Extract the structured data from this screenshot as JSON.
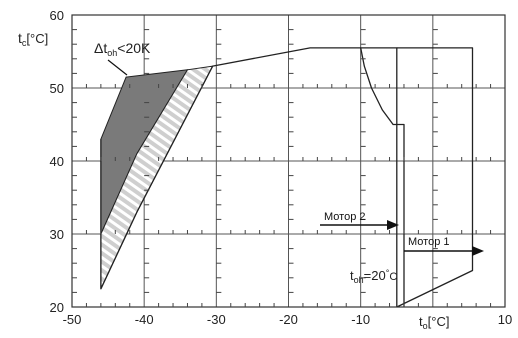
{
  "chart_data": {
    "type": "area",
    "xlim": [
      -50,
      10
    ],
    "ylim": [
      20,
      60
    ],
    "x_ticks": [
      "-50",
      "-40",
      "-30",
      "-20",
      "-10",
      "",
      "10"
    ],
    "y_ticks": [
      "20",
      "30",
      "40",
      "50",
      "60"
    ],
    "grid": true,
    "y_label": {
      "main": "t",
      "sub": "c",
      "unit": "[°C]"
    },
    "x_label": {
      "main": "t",
      "sub": "o",
      "unit": "[°C]"
    },
    "series": [
      {
        "fill": "#7a7a7a",
        "points": [
          [
            -46,
            43
          ],
          [
            -46,
            30
          ],
          [
            -41,
            41
          ],
          [
            -34,
            52.5
          ],
          [
            -42.5,
            51.5
          ]
        ]
      },
      {
        "fill": "hatched",
        "points": [
          [
            -46,
            30
          ],
          [
            -46,
            22.5
          ],
          [
            -41,
            33
          ],
          [
            -30.5,
            53
          ],
          [
            -34,
            52.5
          ],
          [
            -41,
            41
          ]
        ]
      },
      {
        "outline": true,
        "points": [
          [
            -46,
            43
          ],
          [
            -46,
            22.5
          ],
          [
            -41,
            33
          ],
          [
            -30.5,
            53
          ],
          [
            -17,
            55.5
          ],
          [
            -5,
            55.5
          ],
          [
            -5,
            20
          ]
        ]
      },
      {
        "outline": true,
        "points": [
          [
            -10,
            55.5
          ],
          [
            -9.5,
            53
          ],
          [
            -8.5,
            50
          ],
          [
            -7,
            47
          ],
          [
            -5.5,
            45
          ],
          [
            -4,
            45
          ],
          [
            -4,
            20
          ]
        ]
      },
      {
        "outline": true,
        "points": [
          [
            -5,
            55.5
          ],
          [
            5.5,
            55.5
          ],
          [
            5.5,
            25
          ],
          [
            -5,
            20
          ]
        ]
      }
    ],
    "annotations": {
      "delta": {
        "prefix": "Δt",
        "sub": "oh",
        "suffix": "<20K"
      },
      "motor2": "Мотор 2",
      "motor1": "Мотор 1",
      "toh": {
        "prefix": "t",
        "sub": "oh",
        "suffix": "=20",
        "deg": "°",
        "unit": "C"
      }
    }
  }
}
